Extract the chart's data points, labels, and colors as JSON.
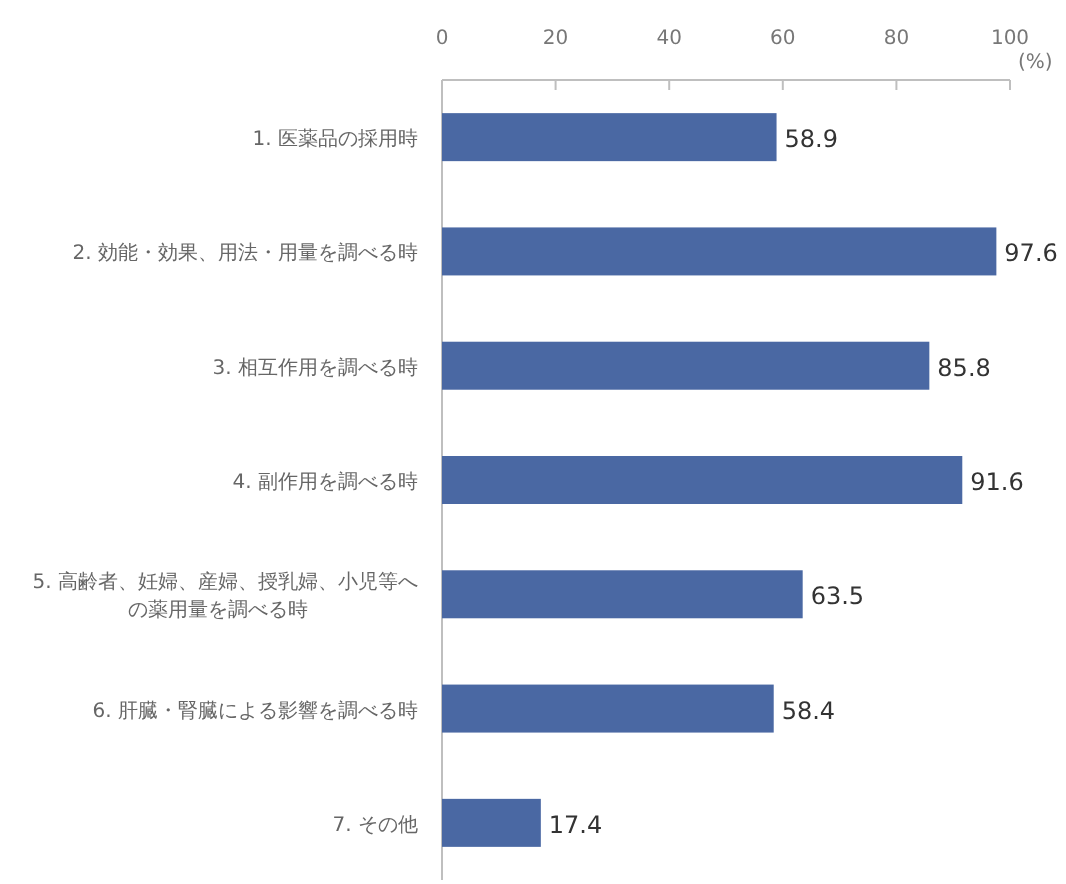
{
  "chart_data": {
    "type": "bar",
    "orientation": "horizontal",
    "xlabel": "(%)",
    "categories": [
      "1. 医薬品の採用時",
      "2. 効能・効果、用法・用量を調べる時",
      "3. 相互作用を調べる時",
      "4. 副作用を調べる時",
      "5. 高齢者、妊婦、産婦、授乳婦、小児等への薬用量を調べる時",
      "6. 肝臓・腎臓による影響を調べる時",
      "7. その他"
    ],
    "values": [
      58.9,
      97.6,
      85.8,
      91.6,
      63.5,
      58.4,
      17.4
    ],
    "color": "#4a68a3",
    "data_labels": true,
    "grid": false,
    "xlim": [
      0,
      100
    ],
    "xticks": [
      0,
      20,
      40,
      60,
      80,
      100
    ]
  }
}
